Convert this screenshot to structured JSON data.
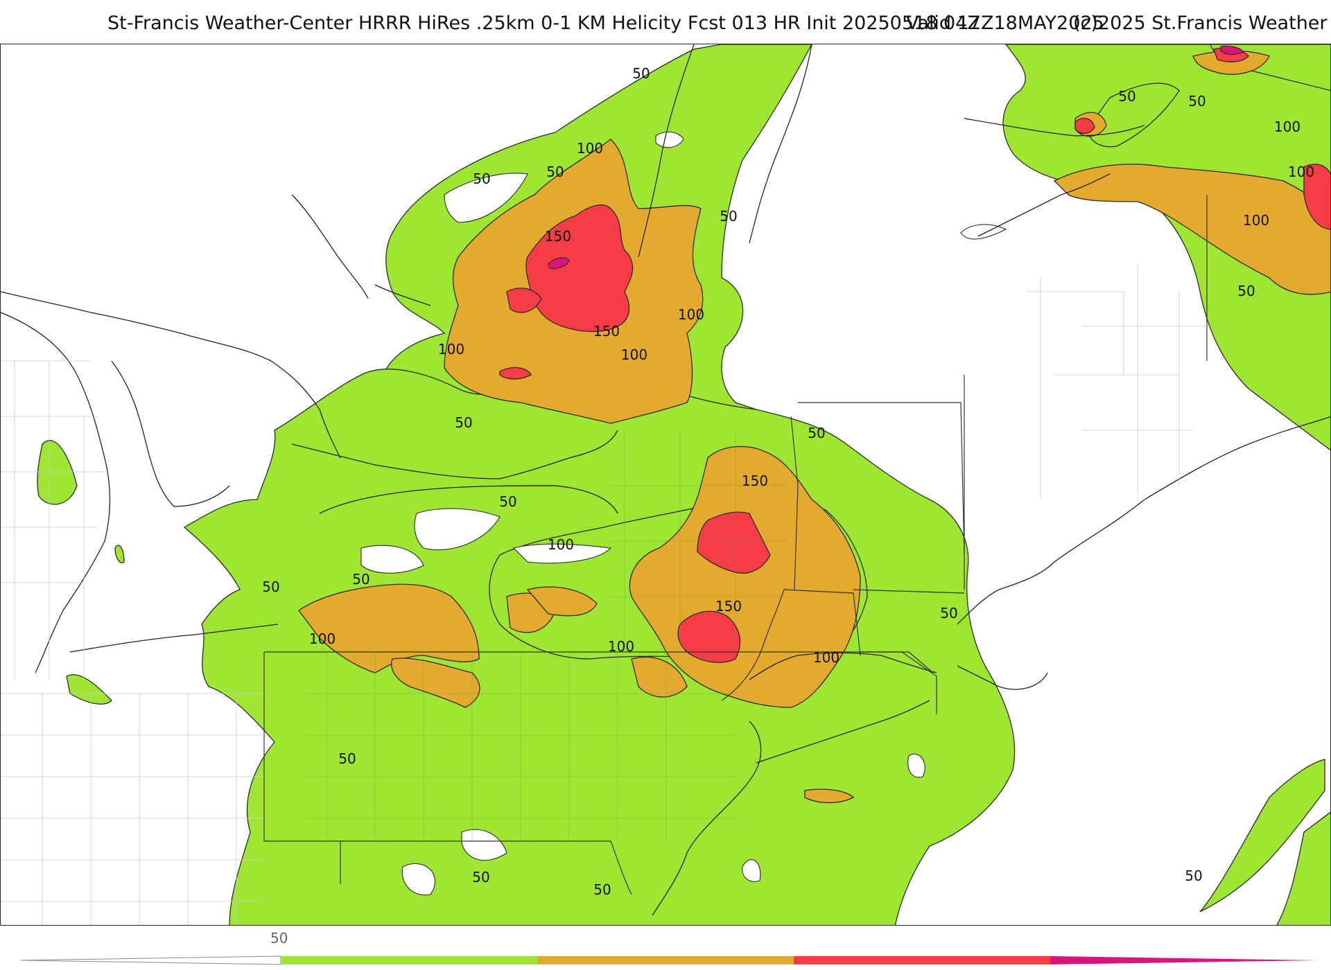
{
  "header": {
    "title": "St-Francis Weather-Center HRRR HiRes .25km 0-1 KM Helicity Fcst 013 HR Init 20250518 04Z",
    "valid": "Valid 17Z18MAY2025",
    "copyright": "(c)2025 St.Francis Weather"
  },
  "map": {
    "contour_levels": [
      "50",
      "100",
      "150"
    ],
    "labels": {
      "l50_a": "50",
      "l50_b": "50",
      "l50_c": "50",
      "l50_d": "50",
      "l50_e": "50",
      "l50_f": "50",
      "l50_g": "50",
      "l50_h": "50",
      "l50_i": "50",
      "l50_j": "50",
      "l50_k": "50",
      "l50_l": "50",
      "l50_m": "50",
      "l50_n": "50",
      "l50_o": "50",
      "l50_p": "50",
      "l50_q": "50",
      "l100_a": "100",
      "l100_b": "100",
      "l100_c": "100",
      "l100_d": "100",
      "l100_e": "100",
      "l100_f": "100",
      "l100_g": "100",
      "l100_h": "100",
      "l100_i": "100",
      "l100_j": "100",
      "l100_k": "100",
      "l150_a": "150",
      "l150_b": "150",
      "l150_c": "150",
      "l150_d": "150"
    },
    "colors": {
      "band_50_100": "#9ee631",
      "band_100_150": "#e3aa2d",
      "band_150_200": "#f73c46",
      "band_200_plus": "#d8157e"
    }
  },
  "colorbar": {
    "tick_label": "50",
    "segments": [
      "#9ee631",
      "#e3aa2d",
      "#f73c46",
      "#d8157e"
    ]
  }
}
